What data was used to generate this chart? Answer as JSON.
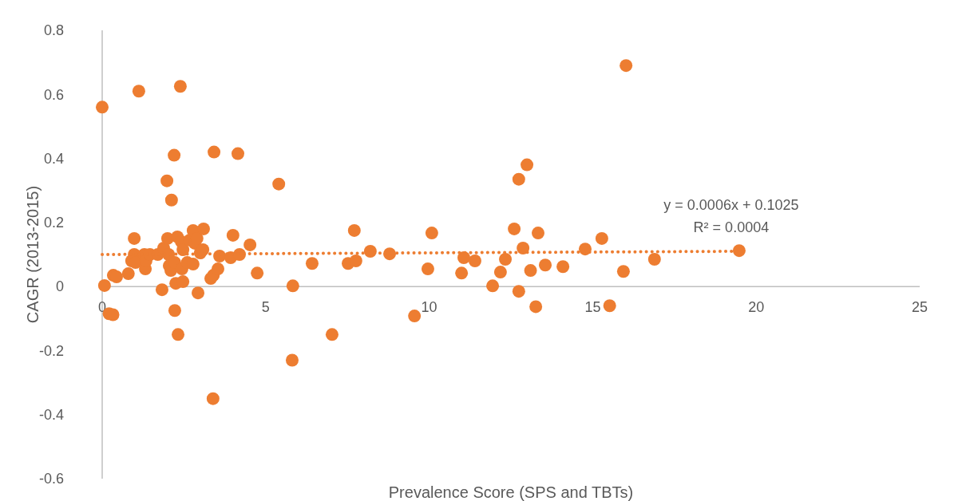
{
  "chart_data": {
    "type": "scatter",
    "xlabel": "Prevalence Score (SPS and TBTs)",
    "ylabel": "CAGR (2013-2015)",
    "xlim": [
      0,
      25
    ],
    "xticks": [
      0,
      5,
      10,
      15,
      20,
      25
    ],
    "ylim": [
      -0.6,
      0.8
    ],
    "yticks": [
      -0.6,
      -0.4,
      -0.2,
      0,
      0.2,
      0.4,
      0.6,
      0.8
    ],
    "grid": false,
    "annotations": [
      "y = 0.0006x + 0.1025",
      "R² = 0.0004"
    ],
    "series": [
      {
        "color": "#ed7d31",
        "marker": "circle",
        "x": [
          0,
          1.12,
          2.39,
          2.2,
          1.98,
          2.12,
          3.42,
          4.15,
          5.4,
          0.07,
          0.34,
          0.44,
          0.8,
          0.98,
          0.98,
          0.9,
          1.02,
          1.29,
          1.32,
          1.34,
          1.46,
          1.7,
          1.83,
          1.88,
          2.0,
          2.03,
          2.05,
          2.1,
          2.22,
          2.22,
          2.25,
          2.3,
          2.32,
          2.42,
          2.47,
          2.47,
          2.44,
          2.6,
          2.68,
          2.78,
          2.83,
          2.78,
          2.9,
          2.93,
          3.0,
          3.08,
          3.1,
          3.32,
          3.4,
          3.54,
          3.59,
          3.93,
          4.0,
          4.2,
          4.52,
          4.74,
          3.39,
          5.81,
          5.83,
          6.42,
          7.03,
          7.52,
          7.71,
          7.76,
          8.2,
          8.79,
          9.55,
          9.96,
          10.08,
          10.99,
          11.06,
          11.4,
          11.94,
          12.18,
          12.33,
          12.6,
          12.74,
          12.74,
          12.99,
          12.87,
          13.1,
          13.26,
          13.33,
          13.55,
          14.09,
          14.77,
          15.28,
          15.52,
          15.94,
          16.02,
          16.89,
          19.48,
          0.21,
          0.33
        ],
        "values": [
          0.56,
          0.61,
          0.625,
          0.41,
          0.33,
          0.27,
          0.42,
          0.415,
          0.32,
          0.003,
          0.035,
          0.03,
          0.04,
          0.15,
          0.1,
          0.08,
          0.075,
          0.1,
          0.055,
          0.08,
          0.1,
          0.1,
          -0.01,
          0.12,
          0.15,
          0.1,
          0.065,
          0.05,
          0.075,
          -0.075,
          0.01,
          0.155,
          -0.15,
          0.14,
          0.115,
          0.015,
          0.055,
          0.075,
          0.145,
          0.175,
          0.135,
          0.07,
          0.15,
          -0.02,
          0.105,
          0.115,
          0.18,
          0.025,
          0.035,
          0.055,
          0.095,
          0.09,
          0.16,
          0.1,
          0.13,
          0.042,
          -0.35,
          -0.23,
          0.002,
          0.072,
          -0.15,
          0.072,
          0.175,
          0.08,
          0.11,
          0.102,
          -0.092,
          0.055,
          0.167,
          0.042,
          0.09,
          0.08,
          0.002,
          0.045,
          0.085,
          0.18,
          -0.015,
          0.335,
          0.38,
          0.12,
          0.05,
          -0.063,
          0.167,
          0.067,
          0.062,
          0.117,
          0.15,
          -0.06,
          0.047,
          0.69,
          0.085,
          0.112,
          -0.085,
          -0.088
        ]
      },
      {
        "type": "line",
        "color": "#ed7d31",
        "line_style": "dotted",
        "marker": "none",
        "x": [
          0,
          19.48
        ],
        "values": [
          0.1,
          0.11
        ]
      }
    ]
  }
}
